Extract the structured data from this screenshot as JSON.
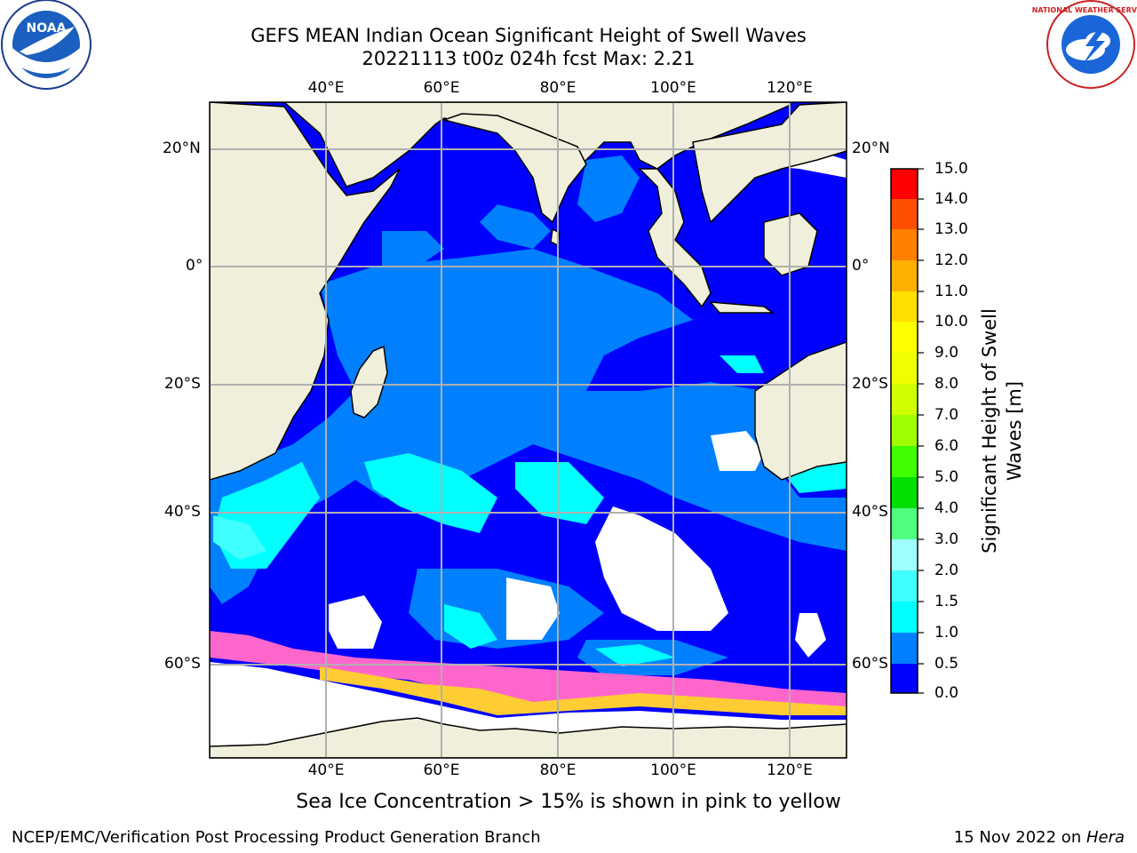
{
  "title_line1": "GEFS MEAN Indian Ocean Significant Height of Swell Waves",
  "title_line2": "20221113 t00z 024h fcst   Max: 2.21",
  "footnote": "Sea Ice Concentration > 15% is shown in pink to yellow",
  "credit_left": "NCEP/EMC/Verification Post Processing Product Generation Branch",
  "credit_right_date": "15 Nov 2022 on ",
  "credit_right_host": "Hera",
  "lon_labels": [
    "40°E",
    "60°E",
    "80°E",
    "100°E",
    "120°E"
  ],
  "lat_labels": [
    "20°N",
    "0°",
    "20°S",
    "40°S",
    "60°S"
  ],
  "colorbar": {
    "label_line1": "Significant Height of Swell",
    "label_line2": "Waves [m]",
    "ticks": [
      "15.0",
      "14.0",
      "13.0",
      "12.0",
      "11.0",
      "10.0",
      "9.0",
      "8.0",
      "7.0",
      "6.0",
      "5.0",
      "4.0",
      "3.0",
      "2.0",
      "1.5",
      "1.0",
      "0.5",
      "0.0"
    ],
    "colors_bottom_to_top": [
      "#0000ff",
      "#0080ff",
      "#00ffff",
      "#40ffff",
      "#70ffff",
      "#a0ffff",
      "#50ff80",
      "#00e000",
      "#40ff00",
      "#a0ff00",
      "#d0ff00",
      "#f0ff00",
      "#ffff00",
      "#ffe000",
      "#ffb000",
      "#ff8000",
      "#ff5000",
      "#ff2000",
      "#ff0000"
    ]
  },
  "map_colors": {
    "land": "#efefdc",
    "ocean_low": "#0000ff",
    "ocean_mid": "#0080ff",
    "ocean_high": "#00ffff",
    "ice_pink": "#ff66cc",
    "ice_yellow": "#ffcc33",
    "no_data": "#ffffff"
  },
  "logos": {
    "left": "NOAA",
    "right": "NATIONAL WEATHER SERVICE"
  }
}
